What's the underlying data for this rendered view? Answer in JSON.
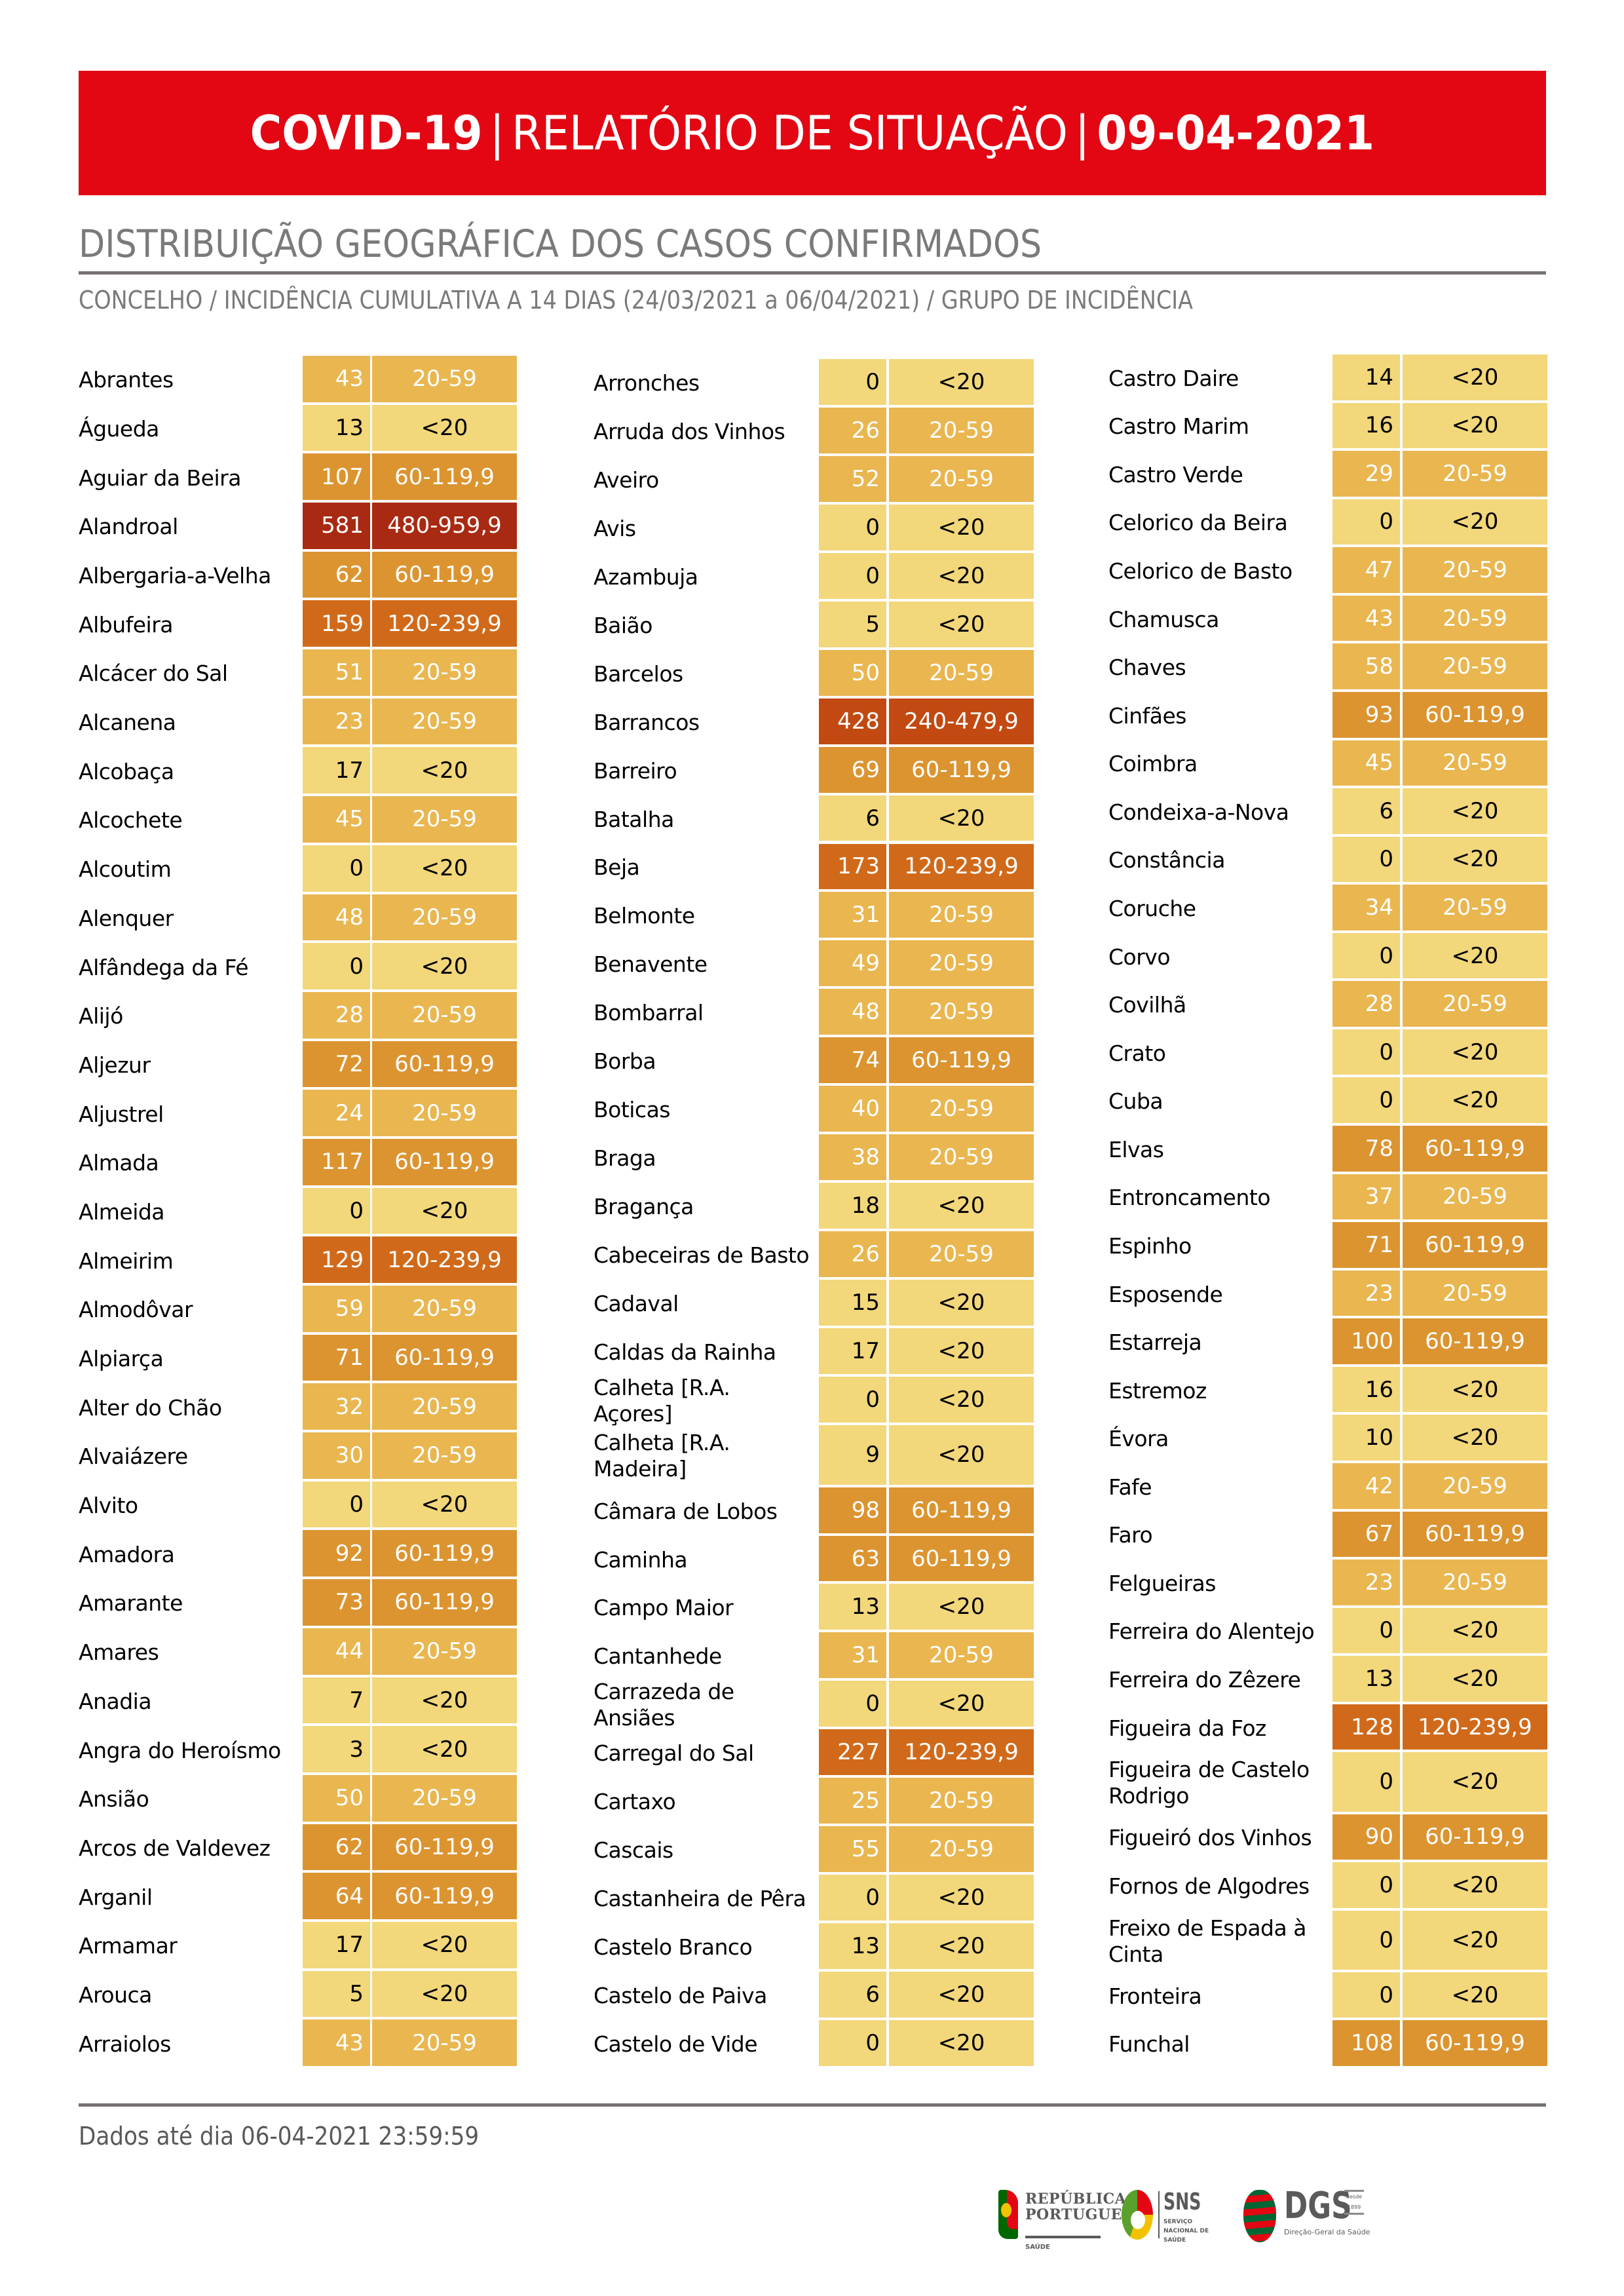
{
  "header": {
    "part1": "COVID-19",
    "sep1": "|",
    "part2": "RELATÓRIO DE SITUAÇÃO",
    "sep2": "|",
    "part3": "09-04-2021"
  },
  "section": {
    "title": "DISTRIBUIÇÃO GEOGRÁFICA DOS CASOS CONFIRMADOS",
    "subtitle": "CONCELHO / INCIDÊNCIA CUMULATIVA A 14 DIAS (24/03/2021 a 06/04/2021) / GRUPO DE INCIDÊNCIA"
  },
  "legend_colors": {
    "<20": {
      "bg": "#f2d77b",
      "fg": "#000000"
    },
    "20-59": {
      "bg": "#e9b650",
      "fg": "#ffffff"
    },
    "60-119,9": {
      "bg": "#dc9430",
      "fg": "#ffffff"
    },
    "120-239,9": {
      "bg": "#d06a1a",
      "fg": "#ffffff"
    },
    "240-479,9": {
      "bg": "#c24a12",
      "fg": "#ffffff"
    },
    "480-959,9": {
      "bg": "#a82a12",
      "fg": "#ffffff"
    }
  },
  "table": {
    "columns": [
      [
        {
          "name": "Abrantes",
          "value": "43",
          "group": "20-59"
        },
        {
          "name": "Águeda",
          "value": "13",
          "group": "<20"
        },
        {
          "name": "Aguiar da Beira",
          "value": "107",
          "group": "60-119,9"
        },
        {
          "name": "Alandroal",
          "value": "581",
          "group": "480-959,9"
        },
        {
          "name": "Albergaria-a-Velha",
          "value": "62",
          "group": "60-119,9"
        },
        {
          "name": "Albufeira",
          "value": "159",
          "group": "120-239,9"
        },
        {
          "name": "Alcácer do Sal",
          "value": "51",
          "group": "20-59"
        },
        {
          "name": "Alcanena",
          "value": "23",
          "group": "20-59"
        },
        {
          "name": "Alcobaça",
          "value": "17",
          "group": "<20"
        },
        {
          "name": "Alcochete",
          "value": "45",
          "group": "20-59"
        },
        {
          "name": "Alcoutim",
          "value": "0",
          "group": "<20"
        },
        {
          "name": "Alenquer",
          "value": "48",
          "group": "20-59"
        },
        {
          "name": "Alfândega da Fé",
          "value": "0",
          "group": "<20"
        },
        {
          "name": "Alijó",
          "value": "28",
          "group": "20-59"
        },
        {
          "name": "Aljezur",
          "value": "72",
          "group": "60-119,9"
        },
        {
          "name": "Aljustrel",
          "value": "24",
          "group": "20-59"
        },
        {
          "name": "Almada",
          "value": "117",
          "group": "60-119,9"
        },
        {
          "name": "Almeida",
          "value": "0",
          "group": "<20"
        },
        {
          "name": "Almeirim",
          "value": "129",
          "group": "120-239,9"
        },
        {
          "name": "Almodôvar",
          "value": "59",
          "group": "20-59"
        },
        {
          "name": "Alpiarça",
          "value": "71",
          "group": "60-119,9"
        },
        {
          "name": "Alter do Chão",
          "value": "32",
          "group": "20-59"
        },
        {
          "name": "Alvaiázere",
          "value": "30",
          "group": "20-59"
        },
        {
          "name": "Alvito",
          "value": "0",
          "group": "<20"
        },
        {
          "name": "Amadora",
          "value": "92",
          "group": "60-119,9"
        },
        {
          "name": "Amarante",
          "value": "73",
          "group": "60-119,9"
        },
        {
          "name": "Amares",
          "value": "44",
          "group": "20-59"
        },
        {
          "name": "Anadia",
          "value": "7",
          "group": "<20"
        },
        {
          "name": "Angra do Heroísmo",
          "value": "3",
          "group": "<20"
        },
        {
          "name": "Ansião",
          "value": "50",
          "group": "20-59"
        },
        {
          "name": "Arcos de Valdevez",
          "value": "62",
          "group": "60-119,9"
        },
        {
          "name": "Arganil",
          "value": "64",
          "group": "60-119,9"
        },
        {
          "name": "Armamar",
          "value": "17",
          "group": "<20"
        },
        {
          "name": "Arouca",
          "value": "5",
          "group": "<20"
        },
        {
          "name": "Arraiolos",
          "value": "43",
          "group": "20-59"
        }
      ],
      [
        {
          "name": "Arronches",
          "value": "0",
          "group": "<20"
        },
        {
          "name": "Arruda dos Vinhos",
          "value": "26",
          "group": "20-59"
        },
        {
          "name": "Aveiro",
          "value": "52",
          "group": "20-59"
        },
        {
          "name": "Avis",
          "value": "0",
          "group": "<20"
        },
        {
          "name": "Azambuja",
          "value": "0",
          "group": "<20"
        },
        {
          "name": "Baião",
          "value": "5",
          "group": "<20"
        },
        {
          "name": "Barcelos",
          "value": "50",
          "group": "20-59"
        },
        {
          "name": "Barrancos",
          "value": "428",
          "group": "240-479,9"
        },
        {
          "name": "Barreiro",
          "value": "69",
          "group": "60-119,9"
        },
        {
          "name": "Batalha",
          "value": "6",
          "group": "<20"
        },
        {
          "name": "Beja",
          "value": "173",
          "group": "120-239,9"
        },
        {
          "name": "Belmonte",
          "value": "31",
          "group": "20-59"
        },
        {
          "name": "Benavente",
          "value": "49",
          "group": "20-59"
        },
        {
          "name": "Bombarral",
          "value": "48",
          "group": "20-59"
        },
        {
          "name": "Borba",
          "value": "74",
          "group": "60-119,9"
        },
        {
          "name": "Boticas",
          "value": "40",
          "group": "20-59"
        },
        {
          "name": "Braga",
          "value": "38",
          "group": "20-59"
        },
        {
          "name": "Bragança",
          "value": "18",
          "group": "<20"
        },
        {
          "name": "Cabeceiras de Basto",
          "value": "26",
          "group": "20-59"
        },
        {
          "name": "Cadaval",
          "value": "15",
          "group": "<20"
        },
        {
          "name": "Caldas da Rainha",
          "value": "17",
          "group": "<20"
        },
        {
          "name": "Calheta [R.A. Açores]",
          "value": "0",
          "group": "<20"
        },
        {
          "name": "Calheta [R.A. Madeira]",
          "value": "9",
          "group": "<20",
          "tall": true
        },
        {
          "name": "Câmara de Lobos",
          "value": "98",
          "group": "60-119,9"
        },
        {
          "name": "Caminha",
          "value": "63",
          "group": "60-119,9"
        },
        {
          "name": "Campo Maior",
          "value": "13",
          "group": "<20"
        },
        {
          "name": "Cantanhede",
          "value": "31",
          "group": "20-59"
        },
        {
          "name": "Carrazeda de Ansiães",
          "value": "0",
          "group": "<20"
        },
        {
          "name": "Carregal do Sal",
          "value": "227",
          "group": "120-239,9"
        },
        {
          "name": "Cartaxo",
          "value": "25",
          "group": "20-59"
        },
        {
          "name": "Cascais",
          "value": "55",
          "group": "20-59"
        },
        {
          "name": "Castanheira de Pêra",
          "value": "0",
          "group": "<20"
        },
        {
          "name": "Castelo Branco",
          "value": "13",
          "group": "<20"
        },
        {
          "name": "Castelo de Paiva",
          "value": "6",
          "group": "<20"
        },
        {
          "name": "Castelo de Vide",
          "value": "0",
          "group": "<20"
        }
      ],
      [
        {
          "name": "Castro Daire",
          "value": "14",
          "group": "<20"
        },
        {
          "name": "Castro Marim",
          "value": "16",
          "group": "<20"
        },
        {
          "name": "Castro Verde",
          "value": "29",
          "group": "20-59"
        },
        {
          "name": "Celorico da Beira",
          "value": "0",
          "group": "<20"
        },
        {
          "name": "Celorico de Basto",
          "value": "47",
          "group": "20-59"
        },
        {
          "name": "Chamusca",
          "value": "43",
          "group": "20-59"
        },
        {
          "name": "Chaves",
          "value": "58",
          "group": "20-59"
        },
        {
          "name": "Cinfães",
          "value": "93",
          "group": "60-119,9"
        },
        {
          "name": "Coimbra",
          "value": "45",
          "group": "20-59"
        },
        {
          "name": "Condeixa-a-Nova",
          "value": "6",
          "group": "<20"
        },
        {
          "name": "Constância",
          "value": "0",
          "group": "<20"
        },
        {
          "name": "Coruche",
          "value": "34",
          "group": "20-59"
        },
        {
          "name": "Corvo",
          "value": "0",
          "group": "<20"
        },
        {
          "name": "Covilhã",
          "value": "28",
          "group": "20-59"
        },
        {
          "name": "Crato",
          "value": "0",
          "group": "<20"
        },
        {
          "name": "Cuba",
          "value": "0",
          "group": "<20"
        },
        {
          "name": "Elvas",
          "value": "78",
          "group": "60-119,9"
        },
        {
          "name": "Entroncamento",
          "value": "37",
          "group": "20-59"
        },
        {
          "name": "Espinho",
          "value": "71",
          "group": "60-119,9"
        },
        {
          "name": "Esposende",
          "value": "23",
          "group": "20-59"
        },
        {
          "name": "Estarreja",
          "value": "100",
          "group": "60-119,9"
        },
        {
          "name": "Estremoz",
          "value": "16",
          "group": "<20"
        },
        {
          "name": "Évora",
          "value": "10",
          "group": "<20"
        },
        {
          "name": "Fafe",
          "value": "42",
          "group": "20-59"
        },
        {
          "name": "Faro",
          "value": "67",
          "group": "60-119,9"
        },
        {
          "name": "Felgueiras",
          "value": "23",
          "group": "20-59"
        },
        {
          "name": "Ferreira do Alentejo",
          "value": "0",
          "group": "<20"
        },
        {
          "name": "Ferreira do Zêzere",
          "value": "13",
          "group": "<20"
        },
        {
          "name": "Figueira da Foz",
          "value": "128",
          "group": "120-239,9"
        },
        {
          "name": "Figueira de Castelo Rodrigo",
          "value": "0",
          "group": "<20",
          "tall": true
        },
        {
          "name": "Figueiró dos Vinhos",
          "value": "90",
          "group": "60-119,9"
        },
        {
          "name": "Fornos de Algodres",
          "value": "0",
          "group": "<20"
        },
        {
          "name": "Freixo de Espada à Cinta",
          "value": "0",
          "group": "<20",
          "tall": true
        },
        {
          "name": "Fronteira",
          "value": "0",
          "group": "<20"
        },
        {
          "name": "Funchal",
          "value": "108",
          "group": "60-119,9"
        }
      ]
    ]
  },
  "footer": {
    "data_note": "Dados até dia 06-04-2021 23:59:59"
  },
  "logos": {
    "republica": {
      "line1": "REPÚBLICA",
      "line2": "PORTUGUESA",
      "sub": "SAÚDE"
    },
    "sns": {
      "title": "SNS",
      "sub": "SERVIÇO NACIONAL DE SAÚDE"
    },
    "dgs": {
      "title": "DGS",
      "since": "desde 1899",
      "sub": "Direção-Geral da Saúde"
    }
  }
}
